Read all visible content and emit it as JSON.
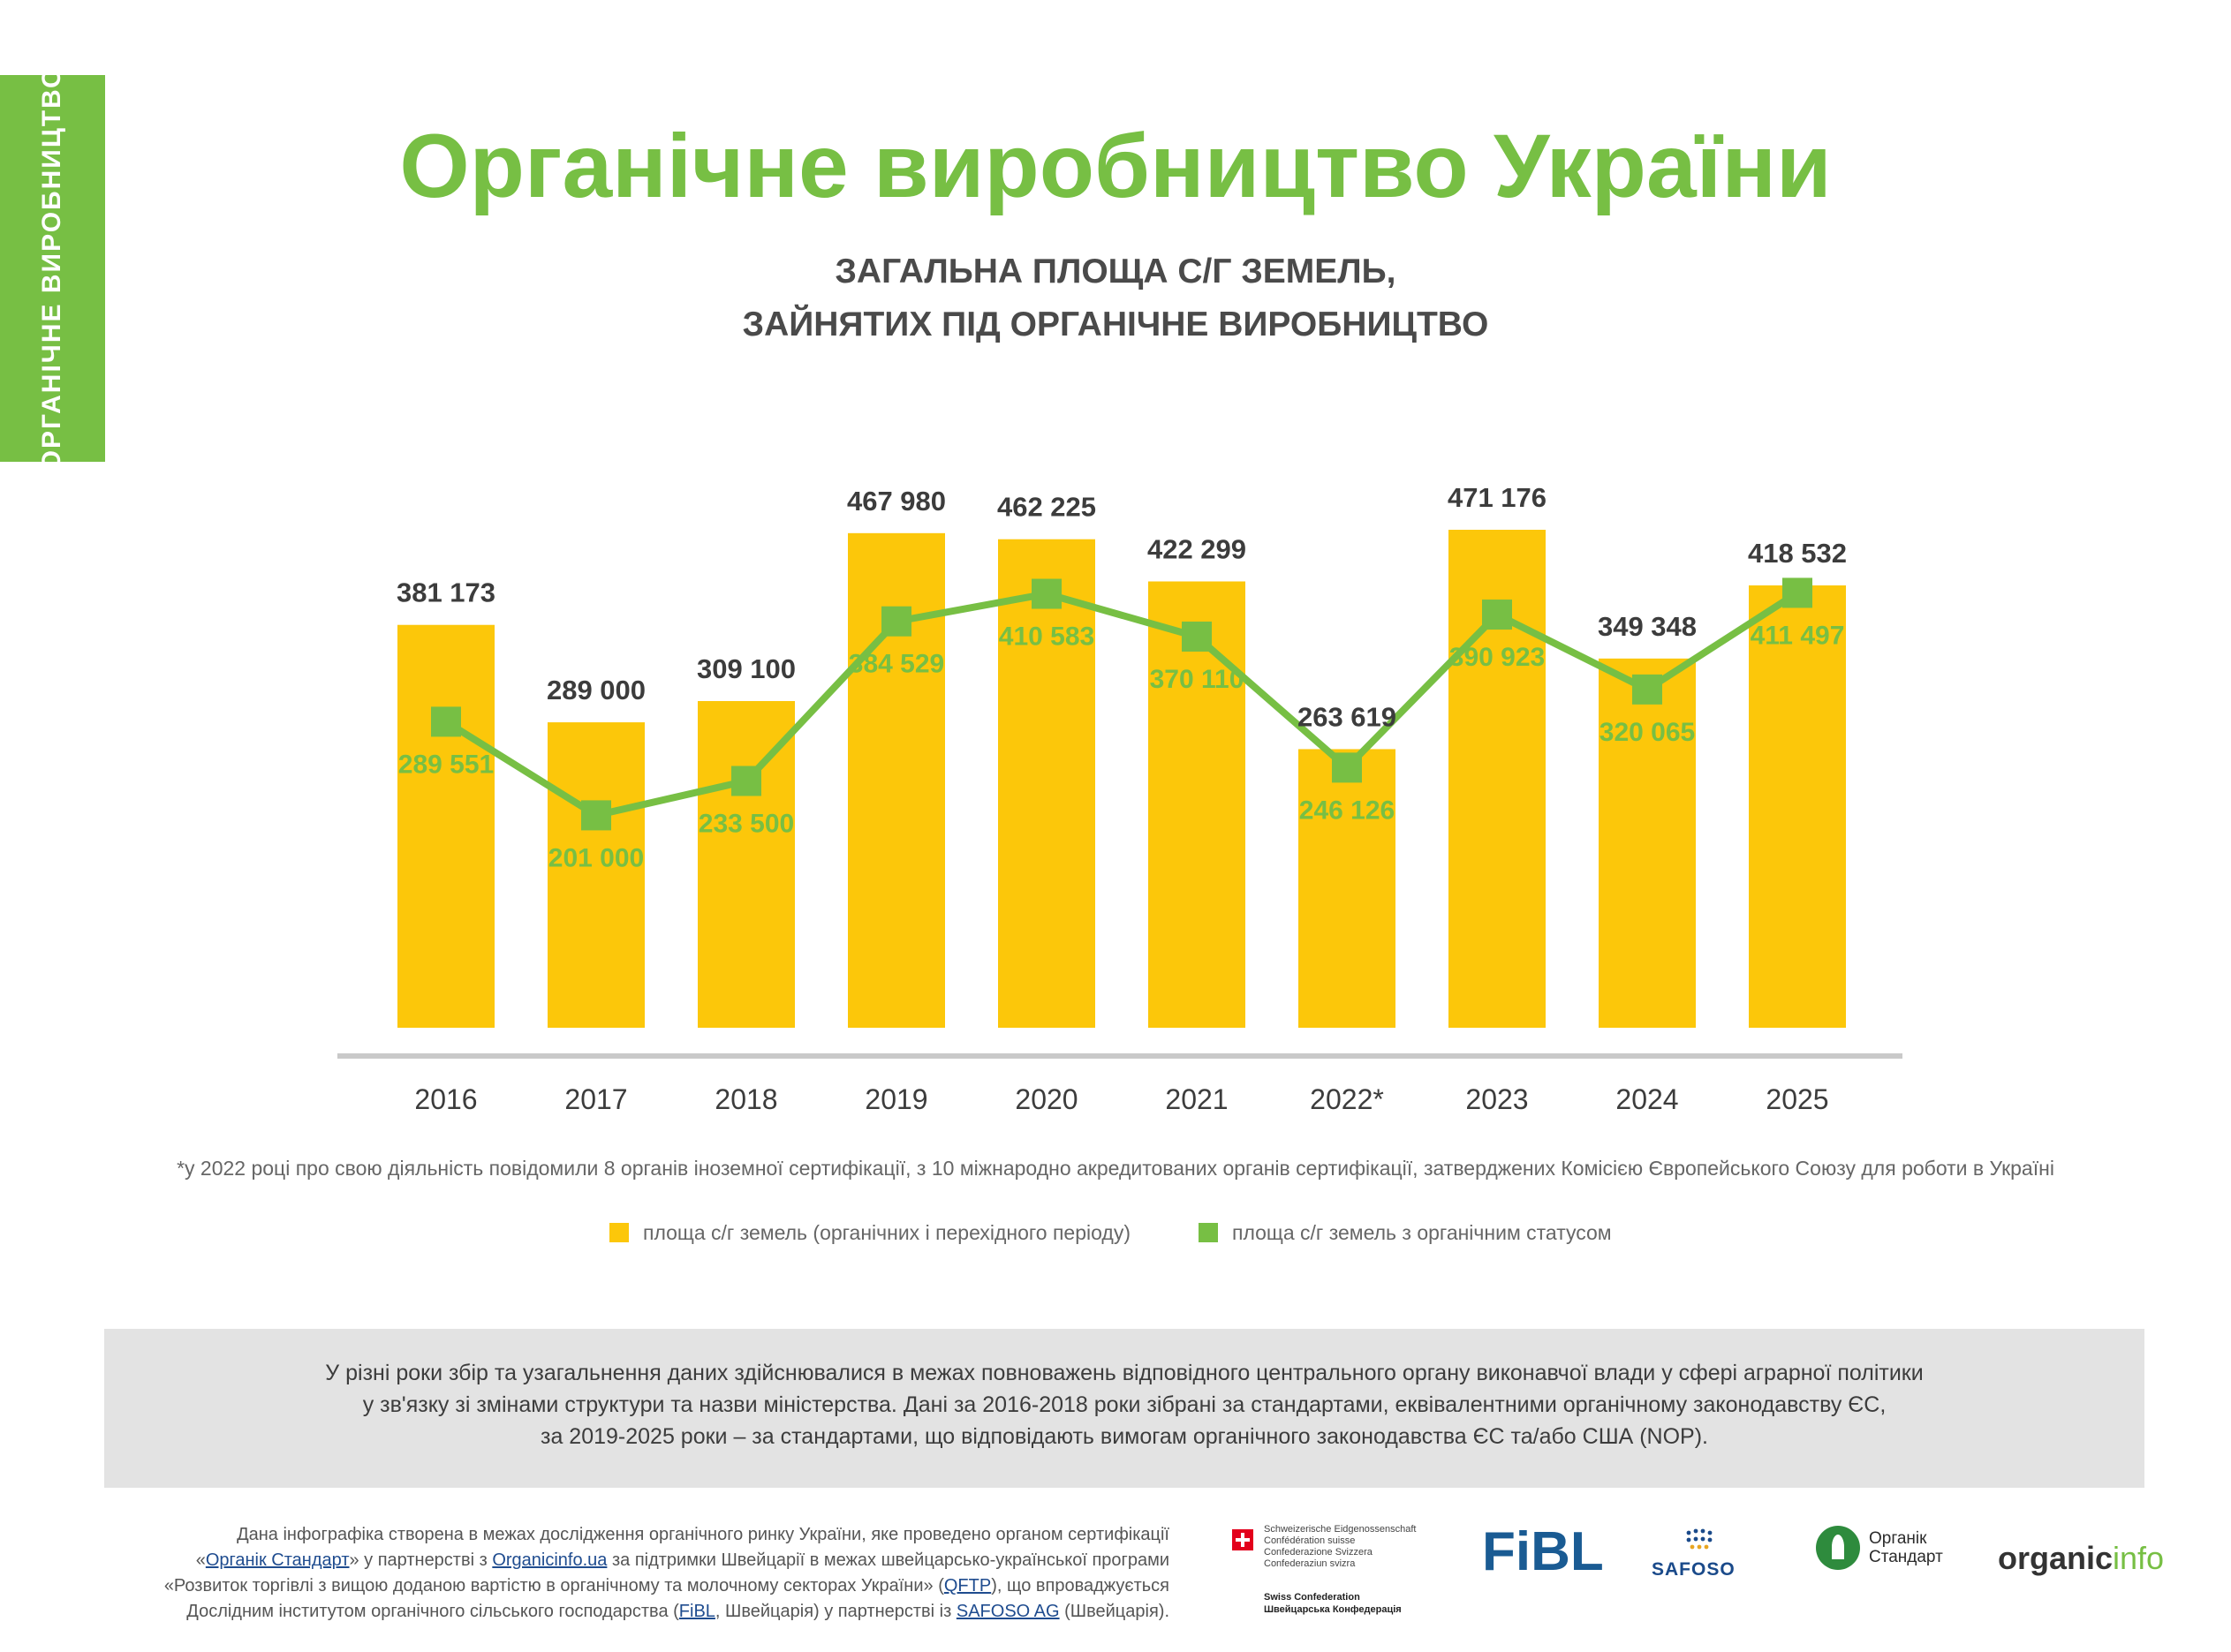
{
  "side_tab": "ОРГАНІЧНЕ  ВИРОБНИЦТВО",
  "title": "Органічне виробництво України",
  "subtitle": [
    "ЗАГАЛЬНА ПЛОЩА С/Г ЗЕМЕЛЬ,",
    "ЗАЙНЯТИХ ПІД ОРГАНІЧНЕ ВИРОБНИЦТВО"
  ],
  "colors": {
    "accent": "#77bf44",
    "bar": "#fcc70a",
    "line": "#77bf44",
    "axis": "#c9c9c9"
  },
  "chart_data": {
    "type": "bar",
    "categories": [
      "2016",
      "2017",
      "2018",
      "2019",
      "2020",
      "2021",
      "2022*",
      "2023",
      "2024",
      "2025"
    ],
    "series": [
      {
        "name": "площа с/г земель (органічних і перехідного періоду)",
        "type": "bar",
        "values": [
          381173,
          289000,
          309100,
          467980,
          462225,
          422299,
          263619,
          471176,
          349348,
          418532
        ],
        "labels": [
          "381 173",
          "289 000",
          "309 100",
          "467 980",
          "462 225",
          "422 299",
          "263 619",
          "471 176",
          "349 348",
          "418 532"
        ]
      },
      {
        "name": "площа с/г земель з органічним статусом",
        "type": "line",
        "values": [
          289551,
          201000,
          233500,
          384529,
          410583,
          370110,
          246126,
          390923,
          320065,
          411497
        ],
        "labels": [
          "289 551",
          "201 000",
          "233 500",
          "384 529",
          "410 583",
          "370 110",
          "246 126",
          "390 923",
          "320 065",
          "411 497"
        ]
      }
    ],
    "ylim": [
      0,
      471176
    ],
    "grid": false,
    "legend_position": "bottom"
  },
  "footnote": "*у 2022 році про свою діяльність повідомили 8 органів іноземної сертифікації, з 10 міжнародно акредитованих органів сертифікації, затверджених Комісією Європейського Союзу для роботи в Україні",
  "legend": {
    "bar": "площа с/г земель (органічних і перехідного періоду)",
    "line": "площа с/г земель з органічним статусом"
  },
  "note": [
    "У різні роки збір та узагальнення даних здійснювалися в межах повноважень відповідного центрального органу виконавчої влади у сфері аграрної політики",
    "у зв'язку зі змінами структури та назви міністерства. Дані за 2016-2018 роки зібрані за стандартами, еквівалентними органічному законодавству ЄС,",
    "за 2019-2025 роки – за стандартами, що відповідають вимогам органічного законодавства ЄС та/або США (NOP)."
  ],
  "credits": {
    "l1": "Дана інфографіка створена в межах дослідження органічного ринку України, яке проведено органом сертифікації",
    "l2a": "«",
    "l2b": "Органік Стандарт",
    "l2c": "» у партнерстві з ",
    "l2d": "Organicinfo.ua",
    "l2e": " за підтримки Швейцарії в межах швейцарсько-української програми",
    "l3a": "«Розвиток торгівлі з вищою доданою вартістю в органічному та молочному секторах України» (",
    "l3b": "QFTP",
    "l3c": "), що впроваджується",
    "l4a": "Дослідним інститутом органічного сільського господарства (",
    "l4b": "FiBL",
    "l4c": ", Швейцарія) у партнерстві із ",
    "l4d": "SAFOSO AG",
    "l4e": " (Швейцарія)."
  },
  "logos": {
    "swiss_lines": [
      "Schweizerische Eidgenossenschaft",
      "Confédération suisse",
      "Confederazione Svizzera",
      "Confederaziun svizra"
    ],
    "swiss_bottom": [
      "Swiss Confederation",
      "Швейцарська Конфедерація"
    ],
    "fibl": "FiBL",
    "safoso": "SAFOSO",
    "orgstd": [
      "Органік",
      "Стандарт"
    ],
    "oinfo_a": "organic",
    "oinfo_b": "info",
    "icons": [
      "swiss-flag-icon",
      "safoso-dots-icon",
      "organic-standard-leaf-icon"
    ]
  }
}
